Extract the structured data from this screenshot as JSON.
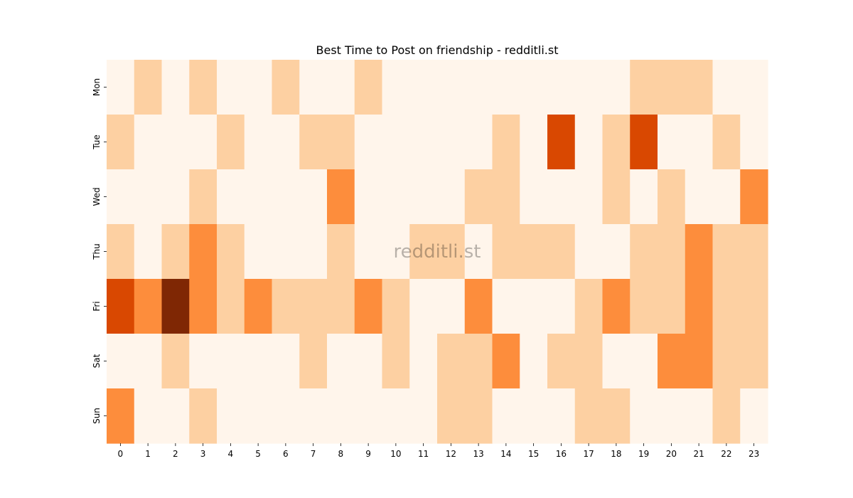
{
  "chart_data": {
    "type": "heatmap",
    "title": "Best Time to Post on friendship - redditli.st",
    "watermark": "redditli.st",
    "x": [
      "0",
      "1",
      "2",
      "3",
      "4",
      "5",
      "6",
      "7",
      "8",
      "9",
      "10",
      "11",
      "12",
      "13",
      "14",
      "15",
      "16",
      "17",
      "18",
      "19",
      "20",
      "21",
      "22",
      "23"
    ],
    "y": [
      "Mon",
      "Tue",
      "Wed",
      "Thu",
      "Fri",
      "Sat",
      "Sun"
    ],
    "values": [
      [
        0,
        1,
        0,
        1,
        0,
        0,
        1,
        0,
        0,
        1,
        0,
        0,
        0,
        0,
        0,
        0,
        0,
        0,
        0,
        1,
        1,
        1,
        0,
        0
      ],
      [
        1,
        0,
        0,
        0,
        1,
        0,
        0,
        1,
        1,
        0,
        0,
        0,
        0,
        0,
        1,
        0,
        3,
        0,
        1,
        3,
        0,
        0,
        1,
        0
      ],
      [
        0,
        0,
        0,
        1,
        0,
        0,
        0,
        0,
        2,
        0,
        0,
        0,
        0,
        1,
        1,
        0,
        0,
        0,
        1,
        0,
        1,
        0,
        0,
        2
      ],
      [
        1,
        0,
        1,
        2,
        1,
        0,
        0,
        0,
        1,
        0,
        0,
        1,
        1,
        0,
        1,
        1,
        1,
        0,
        0,
        1,
        1,
        2,
        1,
        1
      ],
      [
        3,
        2,
        4,
        2,
        1,
        2,
        1,
        1,
        1,
        2,
        1,
        0,
        0,
        2,
        0,
        0,
        0,
        1,
        2,
        1,
        1,
        2,
        1,
        1
      ],
      [
        0,
        0,
        1,
        0,
        0,
        0,
        0,
        1,
        0,
        0,
        1,
        0,
        1,
        1,
        2,
        0,
        1,
        1,
        0,
        0,
        2,
        2,
        1,
        1
      ],
      [
        2,
        0,
        0,
        1,
        0,
        0,
        0,
        0,
        0,
        0,
        0,
        0,
        1,
        1,
        0,
        0,
        0,
        1,
        1,
        0,
        0,
        0,
        1,
        0
      ]
    ],
    "colormap": [
      "#fff5eb",
      "#fdd0a2",
      "#fd8d3c",
      "#d94801",
      "#7f2704"
    ],
    "xlabel": "",
    "ylabel": "",
    "legend": "none",
    "grid": false
  }
}
